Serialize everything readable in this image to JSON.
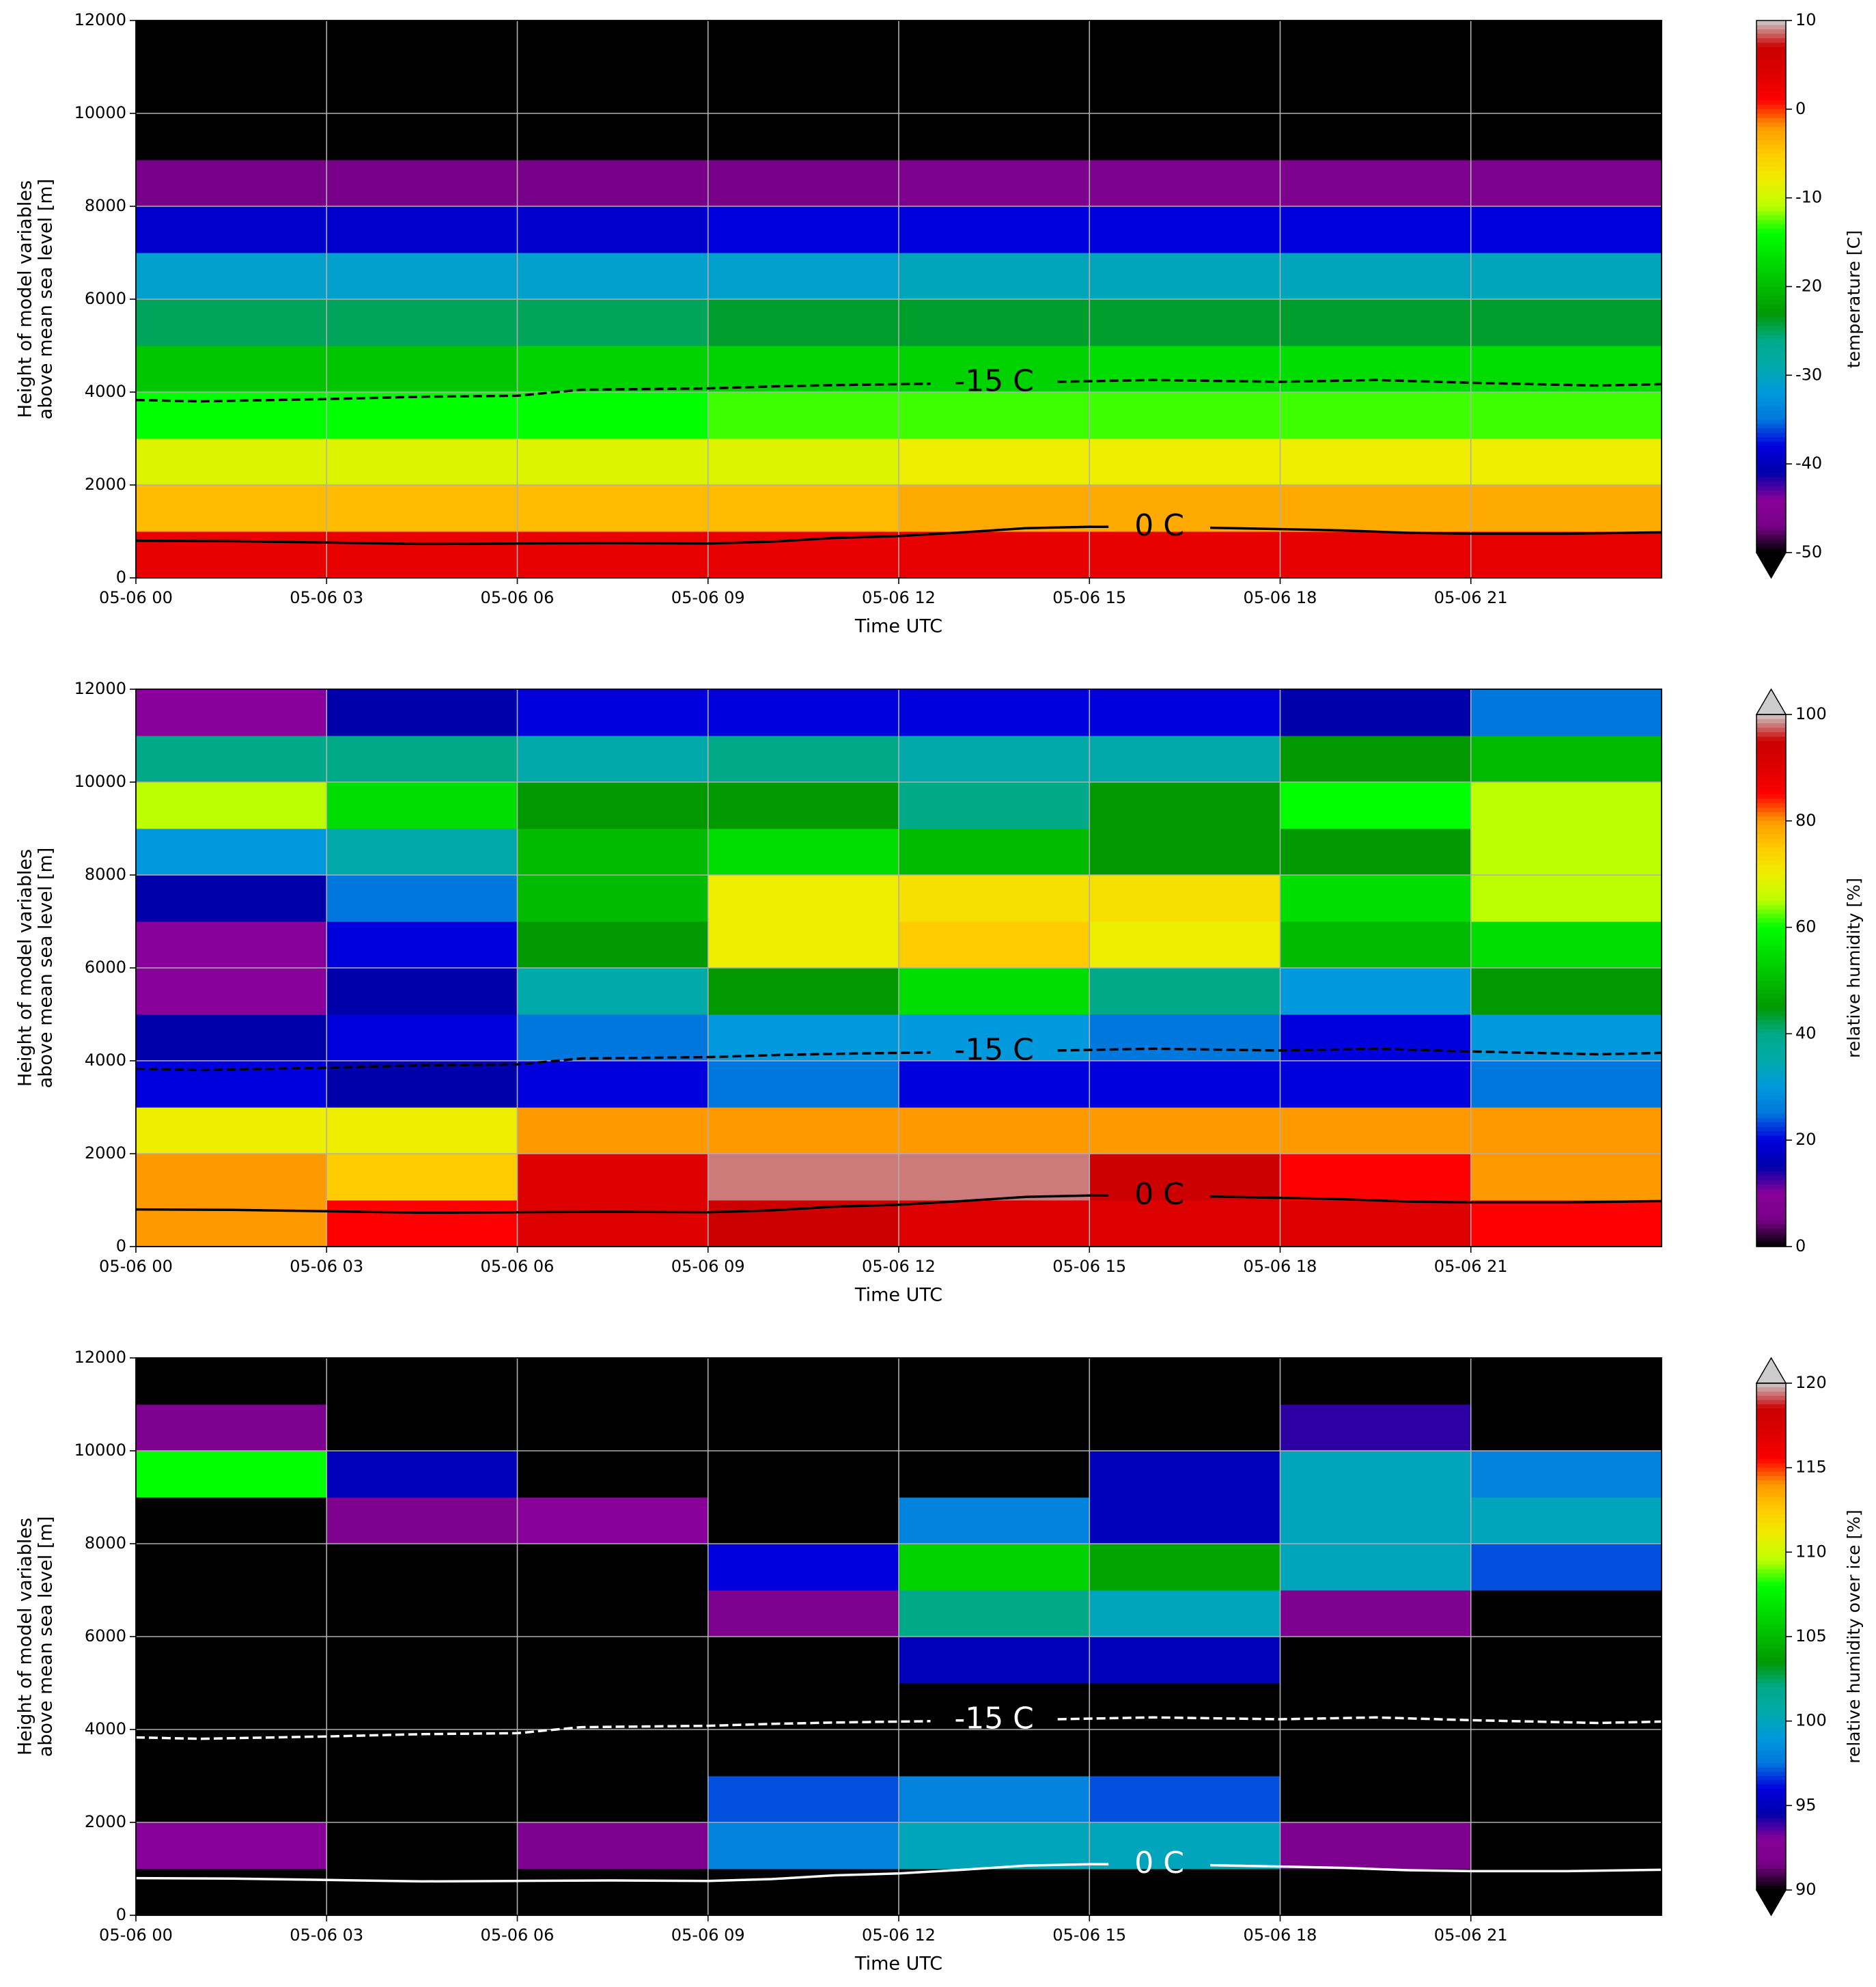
{
  "chart_data": [
    {
      "type": "heatmap",
      "colormap": "nipy_spectral",
      "extend": "min",
      "grid": true,
      "xlabel": "Time UTC",
      "ylabel": [
        "Height of model variables",
        "above mean sea level [m]"
      ],
      "clabel": "temperature [C]",
      "xlim": [
        0,
        24
      ],
      "xticks": [
        {
          "value": 0,
          "label": "05-06 00"
        },
        {
          "value": 3,
          "label": "05-06 03"
        },
        {
          "value": 6,
          "label": "05-06 06"
        },
        {
          "value": 9,
          "label": "05-06 09"
        },
        {
          "value": 12,
          "label": "05-06 12"
        },
        {
          "value": 15,
          "label": "05-06 15"
        },
        {
          "value": 18,
          "label": "05-06 18"
        },
        {
          "value": 21,
          "label": "05-06 21"
        }
      ],
      "ylim": [
        0,
        12000
      ],
      "yticks": [
        0,
        2000,
        4000,
        6000,
        8000,
        10000,
        12000
      ],
      "clim": [
        -50,
        10
      ],
      "cticks": [
        -50,
        -40,
        -30,
        -20,
        -10,
        0,
        10
      ],
      "x_bins": [
        0,
        3,
        6,
        9,
        12,
        15,
        18,
        21,
        24
      ],
      "y_bins": [
        0,
        1000,
        2000,
        3000,
        4000,
        5000,
        6000,
        7000,
        8000,
        9000,
        10000,
        11000,
        12000
      ],
      "z": [
        [
          3,
          3,
          3,
          3,
          3,
          3,
          3,
          3
        ],
        [
          -4,
          -4,
          -4,
          -4,
          -3,
          -3,
          -3,
          -3
        ],
        [
          -9,
          -9,
          -9,
          -9,
          -8,
          -8,
          -8,
          -8
        ],
        [
          -14,
          -14,
          -14,
          -13,
          -13,
          -13,
          -13,
          -13
        ],
        [
          -19,
          -19,
          -18,
          -18,
          -18,
          -17,
          -17,
          -17
        ],
        [
          -25,
          -25,
          -25,
          -24,
          -24,
          -24,
          -24,
          -24
        ],
        [
          -31,
          -31,
          -31,
          -31,
          -30,
          -30,
          -30,
          -30
        ],
        [
          -39,
          -39,
          -39,
          -38,
          -38,
          -38,
          -38,
          -38
        ],
        [
          -47,
          -47,
          -47,
          -47,
          -46,
          -46,
          -46,
          -46
        ],
        [
          -60,
          -60,
          -60,
          -60,
          -60,
          -60,
          -60,
          -60
        ],
        [
          -60,
          -60,
          -60,
          -60,
          -60,
          -60,
          -60,
          -60
        ],
        [
          -60,
          -60,
          -60,
          -60,
          -60,
          -60,
          -60,
          -60
        ]
      ],
      "contour_color": "#000000",
      "contours": [
        {
          "label": "-15 C",
          "style": "dashed",
          "x": [
            0,
            1,
            3,
            4.5,
            6,
            7,
            9,
            10,
            11,
            12,
            12.5,
            null,
            14.5,
            16,
            18,
            19.5,
            21,
            23,
            24
          ],
          "y": [
            3830,
            3800,
            3850,
            3900,
            3920,
            4050,
            4080,
            4120,
            4150,
            4170,
            4180,
            null,
            4220,
            4260,
            4220,
            4260,
            4200,
            4140,
            4170
          ]
        },
        {
          "label": "0 C",
          "style": "solid",
          "x": [
            0,
            1.5,
            3,
            4.5,
            6,
            7.5,
            9,
            10,
            11,
            12,
            13,
            14,
            15,
            15.3,
            null,
            16.9,
            18,
            19,
            20,
            21,
            22.5,
            24
          ],
          "y": [
            800,
            790,
            760,
            730,
            740,
            750,
            740,
            780,
            860,
            900,
            980,
            1070,
            1100,
            1100,
            null,
            1080,
            1050,
            1020,
            970,
            950,
            950,
            980
          ]
        }
      ]
    },
    {
      "type": "heatmap",
      "colormap": "nipy_spectral",
      "extend": "max",
      "grid": true,
      "xlabel": "Time UTC",
      "ylabel": [
        "Height of model variables",
        "above mean sea level [m]"
      ],
      "clabel": "relative humidity [%]",
      "xlim": [
        0,
        24
      ],
      "xticks": [
        {
          "value": 0,
          "label": "05-06 00"
        },
        {
          "value": 3,
          "label": "05-06 03"
        },
        {
          "value": 6,
          "label": "05-06 06"
        },
        {
          "value": 9,
          "label": "05-06 09"
        },
        {
          "value": 12,
          "label": "05-06 12"
        },
        {
          "value": 15,
          "label": "05-06 15"
        },
        {
          "value": 18,
          "label": "05-06 18"
        },
        {
          "value": 21,
          "label": "05-06 21"
        }
      ],
      "ylim": [
        0,
        12000
      ],
      "yticks": [
        0,
        2000,
        4000,
        6000,
        8000,
        10000,
        12000
      ],
      "clim": [
        0,
        100
      ],
      "cticks": [
        0,
        20,
        40,
        60,
        80,
        100
      ],
      "x_bins": [
        0,
        3,
        6,
        9,
        12,
        15,
        18,
        21,
        24
      ],
      "y_bins": [
        0,
        1000,
        2000,
        3000,
        4000,
        5000,
        6000,
        7000,
        8000,
        9000,
        10000,
        11000,
        12000
      ],
      "z": [
        [
          80,
          85,
          90,
          95,
          90,
          90,
          90,
          85
        ],
        [
          80,
          75,
          90,
          98,
          98,
          95,
          85,
          80
        ],
        [
          70,
          70,
          80,
          80,
          80,
          80,
          80,
          80
        ],
        [
          20,
          15,
          20,
          25,
          20,
          20,
          20,
          25
        ],
        [
          15,
          20,
          25,
          30,
          30,
          25,
          20,
          30
        ],
        [
          10,
          15,
          35,
          45,
          55,
          40,
          30,
          45
        ],
        [
          10,
          20,
          45,
          70,
          75,
          70,
          50,
          55
        ],
        [
          15,
          25,
          50,
          70,
          72,
          72,
          55,
          65
        ],
        [
          30,
          35,
          50,
          55,
          50,
          45,
          45,
          65
        ],
        [
          65,
          55,
          45,
          45,
          40,
          45,
          60,
          65
        ],
        [
          40,
          40,
          35,
          40,
          35,
          35,
          45,
          50
        ],
        [
          10,
          15,
          20,
          20,
          20,
          20,
          15,
          25
        ]
      ],
      "contour_color": "#000000",
      "contours": [
        {
          "label": "-15 C",
          "style": "dashed",
          "x": [
            0,
            1,
            3,
            4.5,
            6,
            7,
            9,
            10,
            11,
            12,
            12.5,
            null,
            14.5,
            16,
            18,
            19.5,
            21,
            23,
            24
          ],
          "y": [
            3830,
            3800,
            3850,
            3900,
            3920,
            4050,
            4080,
            4120,
            4150,
            4170,
            4180,
            null,
            4220,
            4260,
            4220,
            4260,
            4200,
            4140,
            4170
          ]
        },
        {
          "label": "0 C",
          "style": "solid",
          "x": [
            0,
            1.5,
            3,
            4.5,
            6,
            7.5,
            9,
            10,
            11,
            12,
            13,
            14,
            15,
            15.3,
            null,
            16.9,
            18,
            19,
            20,
            21,
            22.5,
            24
          ],
          "y": [
            800,
            790,
            760,
            730,
            740,
            750,
            740,
            780,
            860,
            900,
            980,
            1070,
            1100,
            1100,
            null,
            1080,
            1050,
            1020,
            970,
            950,
            950,
            980
          ]
        }
      ]
    },
    {
      "type": "heatmap",
      "colormap": "nipy_spectral",
      "extend": "both",
      "grid": true,
      "xlabel": "Time UTC",
      "ylabel": [
        "Height of model variables",
        "above mean sea level [m]"
      ],
      "clabel": "relative humidity over ice [%]",
      "xlim": [
        0,
        24
      ],
      "xticks": [
        {
          "value": 0,
          "label": "05-06 00"
        },
        {
          "value": 3,
          "label": "05-06 03"
        },
        {
          "value": 6,
          "label": "05-06 06"
        },
        {
          "value": 9,
          "label": "05-06 09"
        },
        {
          "value": 12,
          "label": "05-06 12"
        },
        {
          "value": 15,
          "label": "05-06 15"
        },
        {
          "value": 18,
          "label": "05-06 18"
        },
        {
          "value": 21,
          "label": "05-06 21"
        }
      ],
      "ylim": [
        0,
        12000
      ],
      "yticks": [
        0,
        2000,
        4000,
        6000,
        8000,
        10000,
        12000
      ],
      "clim": [
        90,
        120
      ],
      "cticks": [
        90,
        95,
        100,
        105,
        110,
        115,
        120
      ],
      "x_bins": [
        0,
        3,
        6,
        9,
        12,
        15,
        18,
        21,
        24
      ],
      "y_bins": [
        0,
        1000,
        2000,
        3000,
        4000,
        5000,
        6000,
        7000,
        8000,
        9000,
        10000,
        11000,
        12000
      ],
      "z": [
        [
          80,
          80,
          80,
          80,
          80,
          80,
          80,
          80
        ],
        [
          93,
          80,
          92,
          98,
          100,
          100,
          92,
          80
        ],
        [
          80,
          80,
          80,
          97,
          98,
          97,
          80,
          80
        ],
        [
          80,
          80,
          80,
          80,
          80,
          80,
          80,
          80
        ],
        [
          80,
          80,
          80,
          80,
          80,
          80,
          80,
          80
        ],
        [
          80,
          80,
          80,
          80,
          95,
          95,
          80,
          80
        ],
        [
          80,
          80,
          80,
          92,
          102,
          100,
          92,
          80
        ],
        [
          80,
          80,
          80,
          96,
          106,
          104,
          100,
          97
        ],
        [
          80,
          92,
          93,
          80,
          98,
          95,
          100,
          100
        ],
        [
          108,
          95,
          80,
          80,
          80,
          95,
          100,
          98
        ],
        [
          92,
          80,
          80,
          80,
          80,
          80,
          94,
          80
        ],
        [
          80,
          80,
          80,
          80,
          80,
          80,
          80,
          80
        ]
      ],
      "contour_color": "#ffffff",
      "contours": [
        {
          "label": "-15 C",
          "style": "dashed",
          "x": [
            0,
            1,
            3,
            4.5,
            6,
            7,
            9,
            10,
            11,
            12,
            12.5,
            null,
            14.5,
            16,
            18,
            19.5,
            21,
            23,
            24
          ],
          "y": [
            3830,
            3800,
            3850,
            3900,
            3920,
            4050,
            4080,
            4120,
            4150,
            4170,
            4180,
            null,
            4220,
            4260,
            4220,
            4260,
            4200,
            4140,
            4170
          ]
        },
        {
          "label": "0 C",
          "style": "solid",
          "x": [
            0,
            1.5,
            3,
            4.5,
            6,
            7.5,
            9,
            10,
            11,
            12,
            13,
            14,
            15,
            15.3,
            null,
            16.9,
            18,
            19,
            20,
            21,
            22.5,
            24
          ],
          "y": [
            800,
            790,
            760,
            730,
            740,
            750,
            740,
            780,
            860,
            900,
            980,
            1070,
            1100,
            1100,
            null,
            1080,
            1050,
            1020,
            970,
            950,
            950,
            980
          ]
        }
      ]
    }
  ]
}
